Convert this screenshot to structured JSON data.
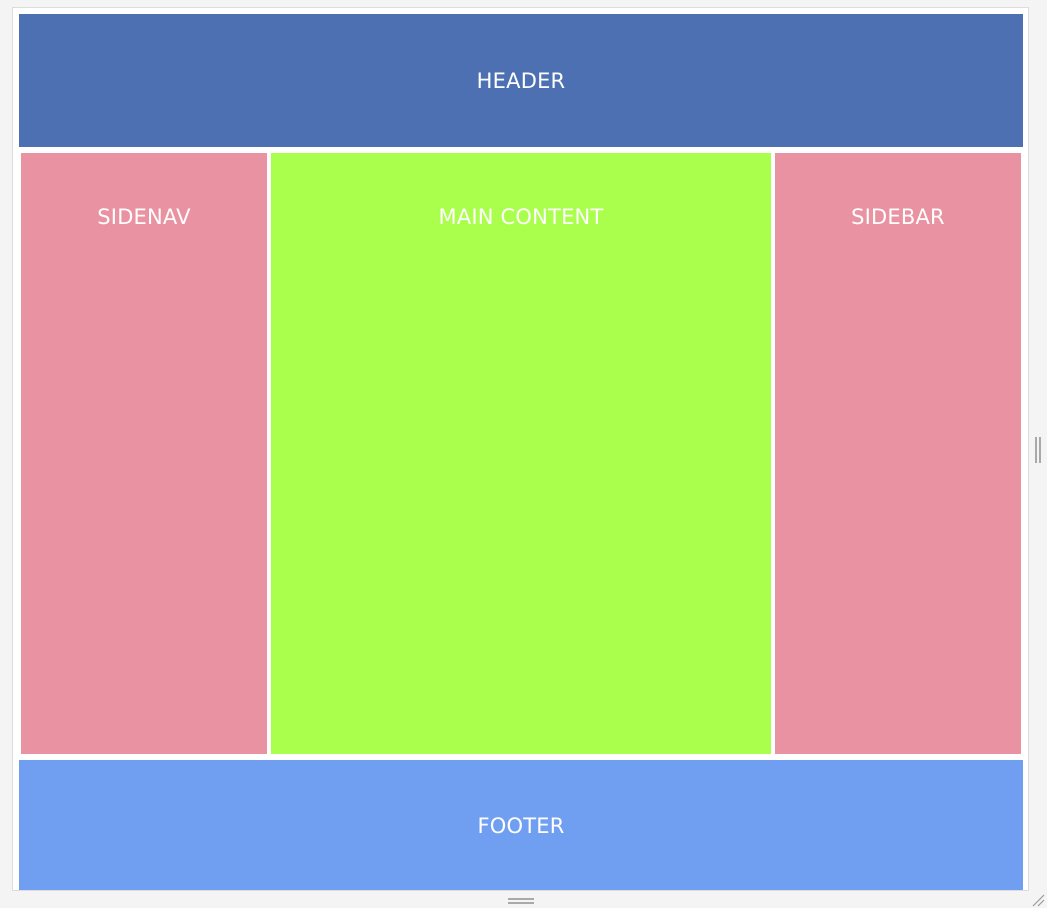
{
  "layout": {
    "header": {
      "label": "HEADER"
    },
    "sidenav": {
      "label": "SIDENAV"
    },
    "main": {
      "label": "MAIN CONTENT"
    },
    "sidebar": {
      "label": "SIDEBAR"
    },
    "footer": {
      "label": "FOOTER"
    }
  },
  "colors": {
    "header": "#4c70b2",
    "sidenav": "#e992a1",
    "main": "#aaff4c",
    "sidebar": "#e992a1",
    "footer": "#709ff2",
    "text": "#ffffff"
  },
  "handles": {
    "vertical": "vertical-resize-grip-icon",
    "horizontal": "horizontal-resize-grip-icon",
    "corner": "corner-resize-grip-icon"
  }
}
